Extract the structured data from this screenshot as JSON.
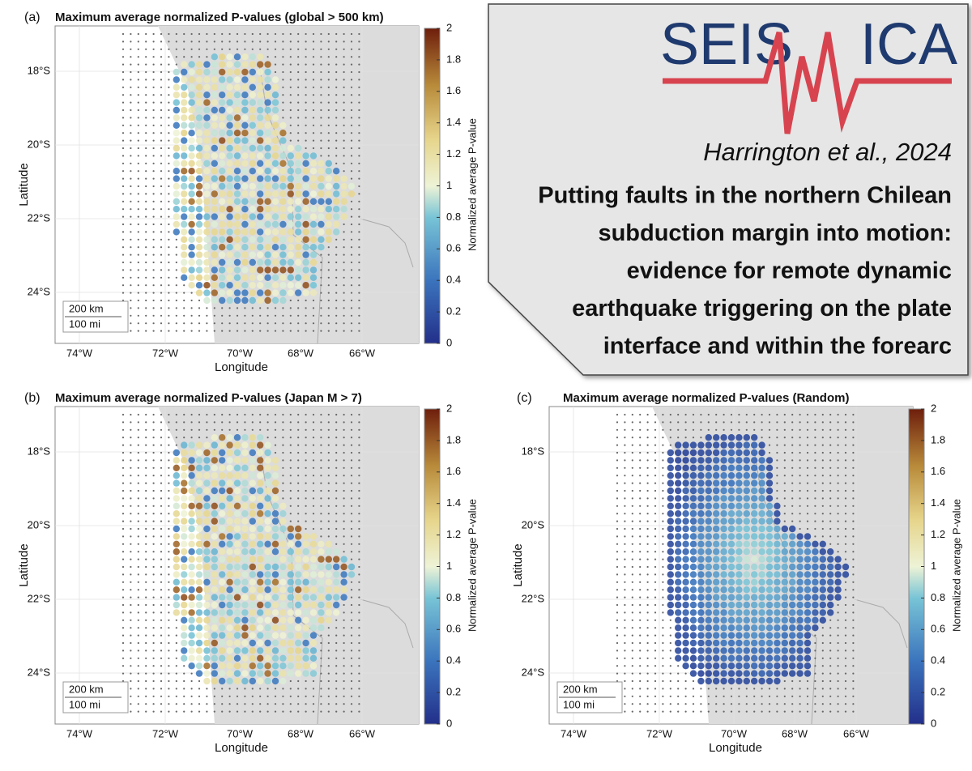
{
  "panels": [
    {
      "label": "(a)",
      "title": "Maximum average normalized P-values (global > 500 km)",
      "x_label": "Longitude",
      "y_label": "Latitude",
      "colorbar_label": "Normalized average P-value",
      "xticks": [
        "74°W",
        "72°W",
        "70°W",
        "68°W",
        "66°W"
      ],
      "yticks": [
        "18°S",
        "20°S",
        "22°S",
        "24°S"
      ],
      "colorbar_ticks": [
        0,
        0.2,
        0.4,
        0.6,
        0.8,
        1,
        1.2,
        1.4,
        1.6,
        1.8,
        2
      ],
      "scale_bar": [
        "200 km",
        "100 mi"
      ]
    },
    {
      "label": "(b)",
      "title": "Maximum average normalized P-values (Japan M > 7)",
      "x_label": "Longitude",
      "y_label": "Latitude",
      "colorbar_label": "Normalized average P-value",
      "xticks": [
        "74°W",
        "72°W",
        "70°W",
        "68°W",
        "66°W"
      ],
      "yticks": [
        "18°S",
        "20°S",
        "22°S",
        "24°S"
      ],
      "colorbar_ticks": [
        0,
        0.2,
        0.4,
        0.6,
        0.8,
        1,
        1.2,
        1.4,
        1.6,
        1.8,
        2
      ],
      "scale_bar": [
        "200 km",
        "100 mi"
      ]
    },
    {
      "label": "(c)",
      "title": "Maximum average normalized P-values (Random)",
      "x_label": "Longitude",
      "y_label": "Latitude",
      "colorbar_label": "Normalized average P-value",
      "xticks": [
        "74°W",
        "72°W",
        "70°W",
        "68°W",
        "66°W"
      ],
      "yticks": [
        "18°S",
        "20°S",
        "22°S",
        "24°S"
      ],
      "colorbar_ticks": [
        0,
        0.2,
        0.4,
        0.6,
        0.8,
        1,
        1.2,
        1.4,
        1.6,
        1.8,
        2
      ],
      "scale_bar": [
        "200 km",
        "100 mi"
      ]
    }
  ],
  "banner": {
    "logo_left": "SEIS",
    "logo_right": "ICA",
    "citation": "Harrington et al., 2024",
    "title_lines": [
      "Putting faults in the northern Chilean",
      "subduction margin into motion:",
      "evidence for remote dynamic",
      "earthquake triggering on the plate",
      "interface and within the forearc"
    ]
  }
}
